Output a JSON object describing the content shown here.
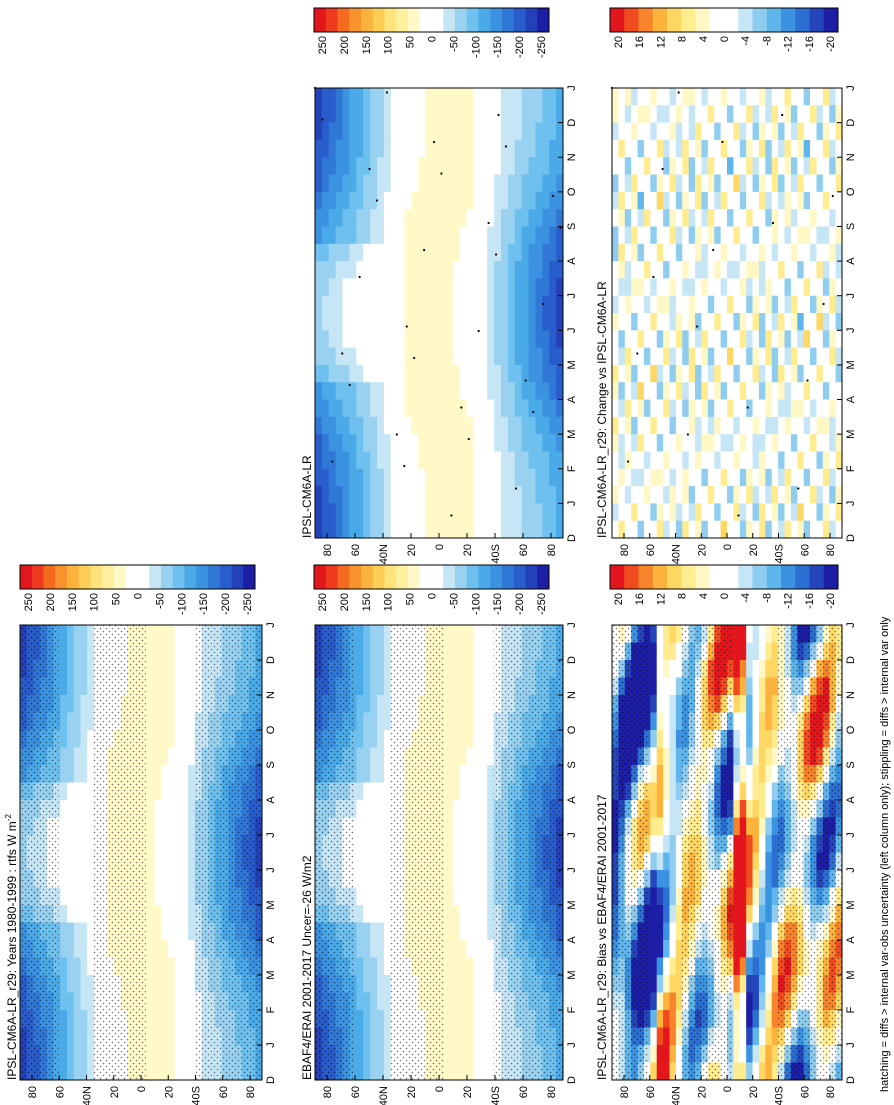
{
  "figure": {
    "footnote": "hatching = diffs > internal var-obs uncertainty (left column only); stippling = diffs > internal var only"
  },
  "colors": {
    "field": [
      "#e3161d",
      "#ee3a1f",
      "#f46a1f",
      "#f8932b",
      "#fbb33d",
      "#fdce55",
      "#fee27a",
      "#fff09f",
      "#fff9c8",
      "#ffffff",
      "#ffffff",
      "#c6e6f6",
      "#98d2f0",
      "#6ec1ee",
      "#4aaae8",
      "#3a92e0",
      "#3078d6",
      "#285dcb",
      "#2341b8",
      "#1c1fa6"
    ],
    "diff": [
      "#e3161d",
      "#f04a1f",
      "#f7842a",
      "#fbb33d",
      "#fdd761",
      "#feec8f",
      "#fff8c4",
      "#ffffff",
      "#ffffff",
      "#c6e6f6",
      "#8fcdf0",
      "#5eb6ec",
      "#3a92e0",
      "#2c6fd2",
      "#2545bb",
      "#1c1fa6"
    ],
    "text": "#000000"
  },
  "chart_data": [
    {
      "type": "heatmap",
      "id": "p1",
      "title": "IPSL-CM6A-LR_r29: Years 1980-1999 : rtfs W m",
      "title_sup": "-2",
      "xlabel": "",
      "ylabel": "",
      "x_ticks": [
        "D",
        "J",
        "F",
        "M",
        "A",
        "M",
        "J",
        "J",
        "A",
        "S",
        "O",
        "N",
        "D",
        "J"
      ],
      "y_ticks": [
        "80",
        "60",
        "40",
        "20",
        "0",
        "20",
        "40",
        "60",
        "80"
      ],
      "y_tick_suffix": {
        "2": "N",
        "6": "S"
      },
      "colorbar": {
        "ticks": [
          "250",
          "200",
          "150",
          "100",
          "50",
          "0",
          "-50",
          "-100",
          "-150",
          "-200",
          "-250"
        ],
        "range": [
          -275,
          275
        ]
      },
      "field": "absolute",
      "stipple": "heavy"
    },
    {
      "type": "heatmap",
      "id": "p2",
      "title": "IPSL-CM6A-LR",
      "title_sup": "",
      "xlabel": "",
      "ylabel": "",
      "x_ticks": [
        "D",
        "J",
        "F",
        "M",
        "A",
        "M",
        "J",
        "J",
        "A",
        "S",
        "O",
        "N",
        "D",
        "J"
      ],
      "y_ticks": [
        "80",
        "60",
        "40",
        "20",
        "0",
        "20",
        "40",
        "60",
        "80"
      ],
      "y_tick_suffix": {
        "2": "N",
        "6": "S"
      },
      "colorbar": {
        "ticks": [
          "250",
          "200",
          "150",
          "100",
          "50",
          "0",
          "-50",
          "-100",
          "-150",
          "-200",
          "-250"
        ],
        "range": [
          -275,
          275
        ]
      },
      "field": "absolute",
      "stipple": "light"
    },
    {
      "type": "heatmap",
      "id": "p3",
      "title": "EBAF4/ERAI 2001-2017 Uncer=-26 W/m2",
      "title_sup": "",
      "xlabel": "",
      "ylabel": "",
      "x_ticks": [
        "D",
        "J",
        "F",
        "M",
        "A",
        "M",
        "J",
        "J",
        "A",
        "S",
        "O",
        "N",
        "D",
        "J"
      ],
      "y_ticks": [
        "80",
        "60",
        "40",
        "20",
        "0",
        "20",
        "40",
        "60",
        "80"
      ],
      "y_tick_suffix": {
        "2": "N",
        "6": "S"
      },
      "colorbar": {
        "ticks": [
          "250",
          "200",
          "150",
          "100",
          "50",
          "0",
          "-50",
          "-100",
          "-150",
          "-200",
          "-250"
        ],
        "range": [
          -275,
          275
        ]
      },
      "field": "absolute",
      "stipple": "heavy"
    },
    {
      "type": "heatmap",
      "id": "p4",
      "title": "IPSL-CM6A-LR_r29: Change vs IPSL-CM6A-LR",
      "title_sup": "",
      "xlabel": "",
      "ylabel": "",
      "x_ticks": [
        "D",
        "J",
        "F",
        "M",
        "A",
        "M",
        "J",
        "J",
        "A",
        "S",
        "O",
        "N",
        "D",
        "J"
      ],
      "y_ticks": [
        "80",
        "60",
        "40",
        "20",
        "0",
        "20",
        "40",
        "60",
        "80"
      ],
      "y_tick_suffix": {
        "2": "N",
        "6": "S"
      },
      "colorbar": {
        "ticks": [
          "20",
          "16",
          "12",
          "8",
          "4",
          "0",
          "-4",
          "-8",
          "-12",
          "-16",
          "-20"
        ],
        "range": [
          -22,
          22
        ]
      },
      "field": "change",
      "stipple": "sparse"
    },
    {
      "type": "heatmap",
      "id": "p5",
      "title": "IPSL-CM6A-LR_r29: Bias vs EBAF4/ERAI 2001-2017",
      "title_sup": "",
      "xlabel": "",
      "ylabel": "",
      "x_ticks": [
        "D",
        "J",
        "F",
        "M",
        "A",
        "M",
        "J",
        "J",
        "A",
        "S",
        "O",
        "N",
        "D",
        "J"
      ],
      "y_ticks": [
        "80",
        "60",
        "40",
        "20",
        "0",
        "20",
        "40",
        "60",
        "80"
      ],
      "y_tick_suffix": {
        "2": "N",
        "6": "S"
      },
      "colorbar": {
        "ticks": [
          "20",
          "16",
          "12",
          "8",
          "4",
          "0",
          "-4",
          "-8",
          "-12",
          "-16",
          "-20"
        ],
        "range": [
          -22,
          22
        ]
      },
      "field": "bias",
      "stipple": "heavy"
    }
  ]
}
